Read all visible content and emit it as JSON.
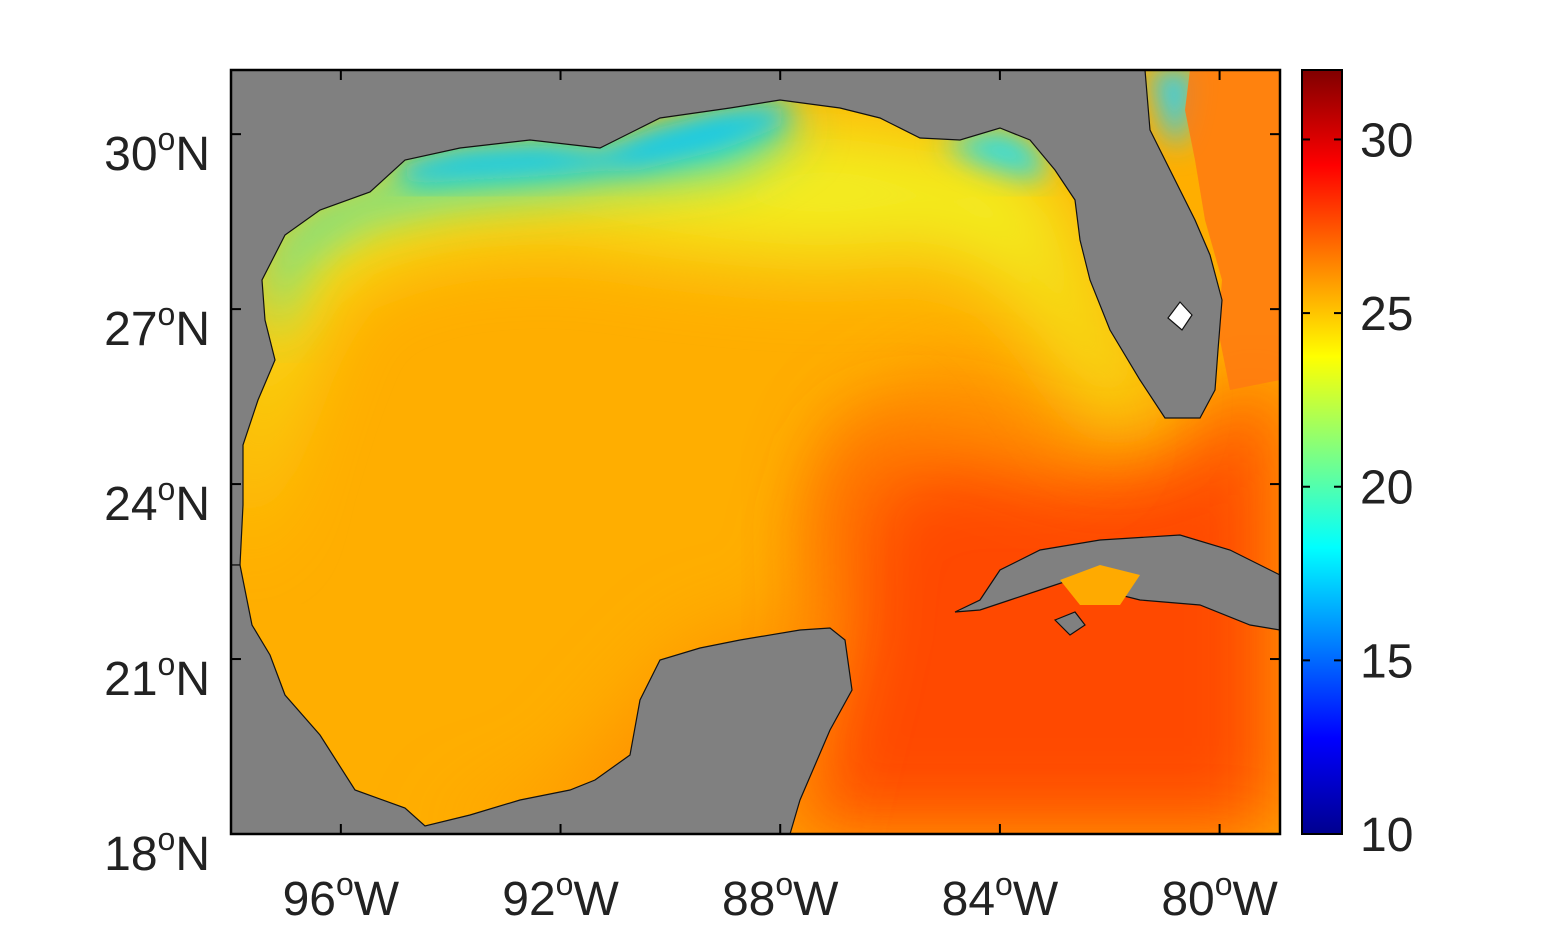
{
  "map": {
    "type": "sea-surface-field",
    "region": {
      "lon_range": [
        -98.0,
        -78.9
      ],
      "lat_range": [
        18.0,
        31.1
      ]
    },
    "x_ticks": [
      {
        "value": -96,
        "deg": "96",
        "sup": "o",
        "hem": "W"
      },
      {
        "value": -92,
        "deg": "92",
        "sup": "o",
        "hem": "W"
      },
      {
        "value": -88,
        "deg": "88",
        "sup": "o",
        "hem": "W"
      },
      {
        "value": -84,
        "deg": "84",
        "sup": "o",
        "hem": "W"
      },
      {
        "value": -80,
        "deg": "80",
        "sup": "o",
        "hem": "W"
      }
    ],
    "y_ticks": [
      {
        "value": 18,
        "deg": "18",
        "sup": "o",
        "hem": "N"
      },
      {
        "value": 21,
        "deg": "21",
        "sup": "o",
        "hem": "N"
      },
      {
        "value": 24,
        "deg": "24",
        "sup": "o",
        "hem": "N"
      },
      {
        "value": 27,
        "deg": "27",
        "sup": "o",
        "hem": "N"
      },
      {
        "value": 30,
        "deg": "30",
        "sup": "o",
        "hem": "N"
      }
    ],
    "land_color": "#808080",
    "ocean_regions": [
      {
        "name": "western-gulf",
        "value": 24.8,
        "color": "#ffb000"
      },
      {
        "name": "loop-current-and-caribbean",
        "value": 27.8,
        "color": "#ff4300"
      },
      {
        "name": "northern-shelf",
        "value": 22.5,
        "color": "#eef520"
      },
      {
        "name": "louisiana-coast",
        "value": 18.5,
        "color": "#1ed5f5"
      },
      {
        "name": "atlantic-east-of-florida",
        "value": 26.5,
        "color": "#ff8800"
      }
    ]
  },
  "colorbar": {
    "range": [
      10,
      32
    ],
    "ticks": [
      {
        "value": 10,
        "label": "10"
      },
      {
        "value": 15,
        "label": "15"
      },
      {
        "value": 20,
        "label": "20"
      },
      {
        "value": 25,
        "label": "25"
      },
      {
        "value": 30,
        "label": "30"
      }
    ],
    "colormap": "jet",
    "colors": [
      "#00008f",
      "#0000ff",
      "#0080ff",
      "#00ffff",
      "#80ff80",
      "#ffff00",
      "#ff8000",
      "#ff0000",
      "#800000"
    ]
  }
}
